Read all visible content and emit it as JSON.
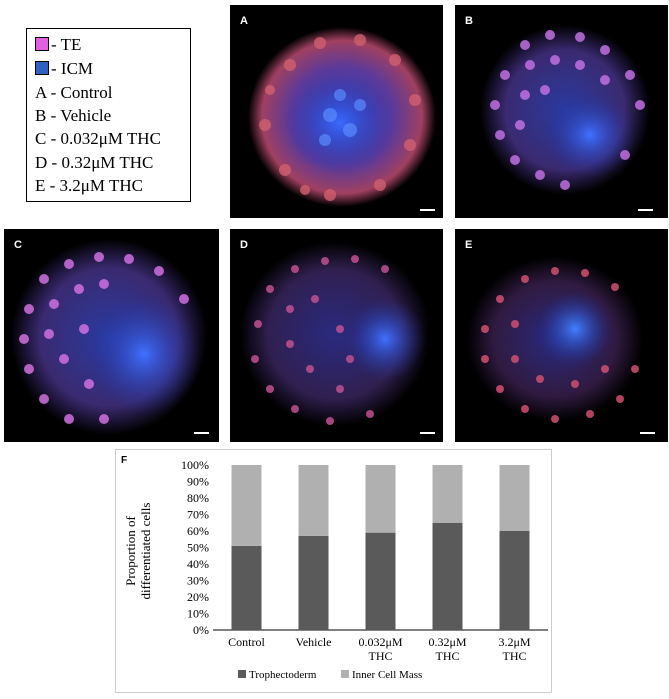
{
  "legend": {
    "items": [
      {
        "swatch": "#e060e0",
        "label": "- TE"
      },
      {
        "swatch": "#3060c0",
        "label": "- ICM"
      },
      {
        "label": "A - Control"
      },
      {
        "label": "B - Vehicle"
      },
      {
        "label": "C - 0.032μM THC"
      },
      {
        "label": "D - 0.32μM THC"
      },
      {
        "label": "E - 3.2μM THC"
      }
    ]
  },
  "panels": [
    {
      "letter": "A"
    },
    {
      "letter": "B"
    },
    {
      "letter": "C"
    },
    {
      "letter": "D"
    },
    {
      "letter": "E"
    }
  ],
  "chart": {
    "letter": "F",
    "ylabel": "Proportion of differentiated cells",
    "legend": [
      "Trophectoderm",
      "Inner Cell Mass"
    ],
    "colors": {
      "trophectoderm": "#5a5a5a",
      "icm": "#b0b0b0"
    }
  },
  "chart_data": {
    "type": "bar",
    "stacked": true,
    "percent": true,
    "categories": [
      "Control",
      "Vehicle",
      "0.032μM THC",
      "0.32μM THC",
      "3.2μM THC"
    ],
    "category_lines": [
      [
        "Control"
      ],
      [
        "Vehicle"
      ],
      [
        "0.032μM",
        "THC"
      ],
      [
        "0.32μM",
        "THC"
      ],
      [
        "3.2μM",
        "THC"
      ]
    ],
    "series": [
      {
        "name": "Trophectoderm",
        "values": [
          51,
          57,
          59,
          65,
          60
        ]
      },
      {
        "name": "Inner Cell Mass",
        "values": [
          49,
          43,
          41,
          35,
          40
        ]
      }
    ],
    "yticks": [
      "0%",
      "10%",
      "20%",
      "30%",
      "40%",
      "50%",
      "60%",
      "70%",
      "80%",
      "90%",
      "100%"
    ],
    "ylim": [
      0,
      100
    ],
    "legend_position": "bottom"
  }
}
